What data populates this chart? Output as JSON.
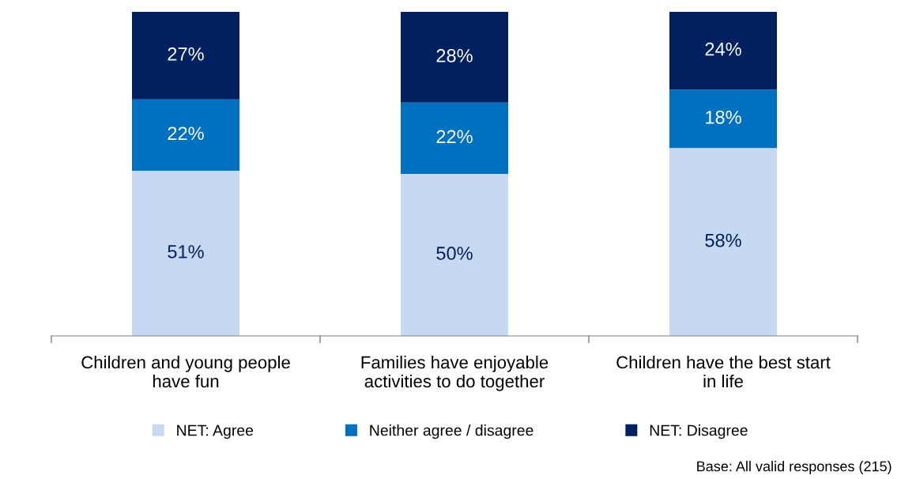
{
  "chart_data": {
    "type": "bar",
    "stacked": true,
    "legend": "bottom",
    "grid": false,
    "categories": [
      "Children and young people have fun",
      "Families have enjoyable activities to do together",
      "Children have the best start in life"
    ],
    "series": [
      {
        "name": "NET: Agree",
        "color": "#c6d9f0",
        "values": [
          51,
          50,
          58
        ],
        "value_labels": [
          "51%",
          "50%",
          "58%"
        ]
      },
      {
        "name": "Neither agree / disagree",
        "color": "#0070c0",
        "values": [
          22,
          22,
          18
        ],
        "value_labels": [
          "22%",
          "22%",
          "18%"
        ]
      },
      {
        "name": "NET: Disagree",
        "color": "#002060",
        "values": [
          27,
          28,
          24
        ],
        "value_labels": [
          "27%",
          "28%",
          "24%"
        ]
      }
    ],
    "annotations": [
      "Base: All valid responses (215)"
    ]
  }
}
